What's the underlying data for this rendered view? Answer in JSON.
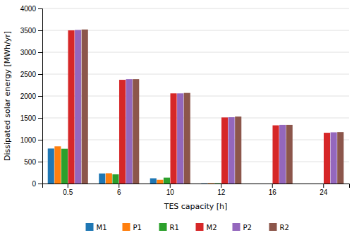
{
  "chart_data": {
    "type": "bar",
    "xlabel": "TES capacity [h]",
    "ylabel": "Dissipated solar energy [MWh/yr]",
    "categories": [
      "0.5",
      "6",
      "10",
      "12",
      "16",
      "24"
    ],
    "series": [
      {
        "name": "M1",
        "values": [
          800,
          230,
          120,
          5,
          0,
          0
        ]
      },
      {
        "name": "P1",
        "values": [
          850,
          235,
          85,
          8,
          0,
          0
        ]
      },
      {
        "name": "R1",
        "values": [
          795,
          210,
          135,
          8,
          0,
          0
        ]
      },
      {
        "name": "M2",
        "values": [
          3500,
          2370,
          2060,
          1510,
          1330,
          1160
        ]
      },
      {
        "name": "P2",
        "values": [
          3510,
          2385,
          2060,
          1515,
          1340,
          1170
        ]
      },
      {
        "name": "R2",
        "values": [
          3520,
          2385,
          2070,
          1530,
          1340,
          1175
        ]
      }
    ],
    "ylim": [
      0,
      4000
    ],
    "yticks": [
      0,
      500,
      1000,
      1500,
      2000,
      2500,
      3000,
      3500,
      4000
    ],
    "grid": true,
    "legend": "bottom"
  }
}
